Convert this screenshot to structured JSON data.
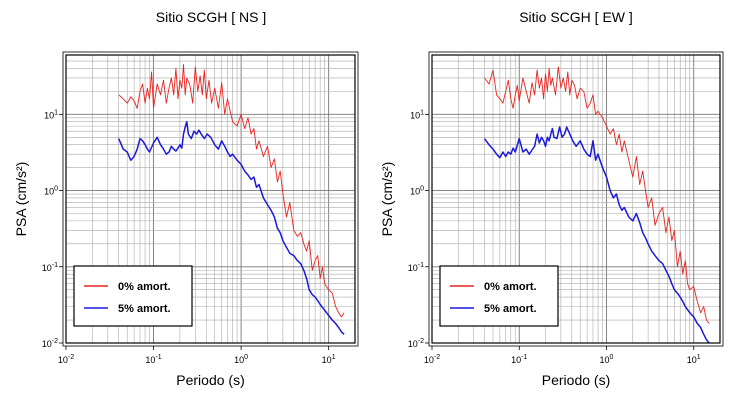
{
  "chart_data": [
    {
      "type": "line",
      "title": "Sitio SCGH [ NS ]",
      "xlabel": "Periodo (s)",
      "ylabel": "PSA (cm/s²)",
      "xscale": "log",
      "yscale": "log",
      "xlim": [
        0.01,
        20
      ],
      "ylim": [
        0.01,
        60
      ],
      "grid": true,
      "legend_position": "bottom-left",
      "x_ticks": [
        {
          "base": "10",
          "exp": "-2",
          "value": 0.01
        },
        {
          "base": "10",
          "exp": "-1",
          "value": 0.1
        },
        {
          "base": "10",
          "exp": "0",
          "value": 1
        },
        {
          "base": "10",
          "exp": "1",
          "value": 10
        }
      ],
      "y_ticks": [
        {
          "base": "10",
          "exp": "-2",
          "value": 0.01
        },
        {
          "base": "10",
          "exp": "-1",
          "value": 0.1
        },
        {
          "base": "10",
          "exp": "0",
          "value": 1
        },
        {
          "base": "10",
          "exp": "1",
          "value": 10
        }
      ],
      "series": [
        {
          "name": "0% amort.",
          "color": "#e8231e",
          "x": [
            0.04,
            0.045,
            0.05,
            0.055,
            0.06,
            0.065,
            0.07,
            0.075,
            0.08,
            0.085,
            0.09,
            0.095,
            0.1,
            0.11,
            0.12,
            0.13,
            0.14,
            0.15,
            0.16,
            0.17,
            0.18,
            0.19,
            0.2,
            0.21,
            0.22,
            0.23,
            0.24,
            0.26,
            0.28,
            0.3,
            0.32,
            0.34,
            0.36,
            0.38,
            0.4,
            0.43,
            0.46,
            0.5,
            0.55,
            0.6,
            0.65,
            0.7,
            0.75,
            0.8,
            0.9,
            1.0,
            1.1,
            1.2,
            1.3,
            1.4,
            1.5,
            1.6,
            1.8,
            2.0,
            2.2,
            2.4,
            2.6,
            2.8,
            3.0,
            3.3,
            3.6,
            4.0,
            4.4,
            4.8,
            5.2,
            5.6,
            6.0,
            6.5,
            7.0,
            7.5,
            8.0,
            8.5,
            9.0,
            10,
            11,
            12,
            13,
            14,
            15
          ],
          "y": [
            18,
            16,
            14,
            17,
            15,
            12,
            20,
            25,
            14,
            22,
            16,
            36,
            12,
            25,
            18,
            28,
            14,
            22,
            30,
            18,
            40,
            16,
            28,
            22,
            45,
            18,
            30,
            24,
            14,
            42,
            20,
            32,
            18,
            38,
            16,
            28,
            14,
            22,
            12,
            26,
            10,
            16,
            11,
            8,
            7,
            10,
            6.5,
            9,
            5.5,
            6.5,
            3.5,
            4.5,
            2.8,
            3.8,
            2.0,
            2.6,
            1.3,
            1.8,
            0.9,
            0.45,
            0.7,
            0.3,
            0.25,
            0.28,
            0.2,
            0.16,
            0.22,
            0.09,
            0.12,
            0.14,
            0.07,
            0.1,
            0.06,
            0.05,
            0.045,
            0.03,
            0.025,
            0.022,
            0.025
          ]
        },
        {
          "name": "5% amort.",
          "color": "#1a1ad8",
          "x": [
            0.04,
            0.045,
            0.05,
            0.055,
            0.06,
            0.065,
            0.07,
            0.075,
            0.08,
            0.085,
            0.09,
            0.1,
            0.11,
            0.12,
            0.13,
            0.14,
            0.15,
            0.16,
            0.17,
            0.18,
            0.19,
            0.2,
            0.21,
            0.22,
            0.23,
            0.24,
            0.25,
            0.27,
            0.29,
            0.31,
            0.33,
            0.35,
            0.38,
            0.41,
            0.45,
            0.5,
            0.55,
            0.6,
            0.65,
            0.7,
            0.75,
            0.8,
            0.9,
            1.0,
            1.1,
            1.2,
            1.3,
            1.4,
            1.5,
            1.6,
            1.8,
            2.0,
            2.2,
            2.4,
            2.6,
            2.8,
            3.0,
            3.3,
            3.6,
            4.0,
            4.4,
            4.8,
            5.2,
            5.6,
            6.0,
            6.5,
            7.0,
            7.5,
            8.0,
            9.0,
            10,
            11,
            12,
            13,
            14,
            15
          ],
          "y": [
            4.8,
            3.5,
            3.2,
            2.5,
            2.8,
            3.5,
            4.8,
            4.5,
            4.0,
            3.5,
            3.2,
            4.2,
            5.0,
            4.0,
            3.5,
            3.0,
            3.2,
            3.8,
            3.5,
            3.3,
            3.6,
            4.0,
            3.6,
            5.5,
            6.8,
            8.0,
            5.5,
            4.8,
            6.0,
            5.5,
            6.2,
            5.5,
            4.8,
            5.5,
            5.0,
            4.0,
            3.5,
            4.5,
            3.8,
            3.2,
            2.8,
            3.0,
            2.5,
            2.2,
            1.8,
            1.6,
            1.4,
            1.5,
            1.1,
            1.2,
            0.8,
            0.65,
            0.55,
            0.45,
            0.32,
            0.28,
            0.22,
            0.18,
            0.15,
            0.14,
            0.12,
            0.11,
            0.09,
            0.07,
            0.05,
            0.043,
            0.04,
            0.036,
            0.032,
            0.027,
            0.023,
            0.02,
            0.018,
            0.016,
            0.014,
            0.013
          ]
        }
      ]
    },
    {
      "type": "line",
      "title": "Sitio SCGH [ EW ]",
      "xlabel": "Periodo (s)",
      "ylabel": "PSA (cm/s²)",
      "xscale": "log",
      "yscale": "log",
      "xlim": [
        0.01,
        20
      ],
      "ylim": [
        0.01,
        60
      ],
      "grid": true,
      "legend_position": "bottom-left",
      "x_ticks": [
        {
          "base": "10",
          "exp": "-2",
          "value": 0.01
        },
        {
          "base": "10",
          "exp": "-1",
          "value": 0.1
        },
        {
          "base": "10",
          "exp": "0",
          "value": 1
        },
        {
          "base": "10",
          "exp": "1",
          "value": 10
        }
      ],
      "y_ticks": [
        {
          "base": "10",
          "exp": "-2",
          "value": 0.01
        },
        {
          "base": "10",
          "exp": "-1",
          "value": 0.1
        },
        {
          "base": "10",
          "exp": "0",
          "value": 1
        },
        {
          "base": "10",
          "exp": "1",
          "value": 10
        }
      ],
      "series": [
        {
          "name": "0% amort.",
          "color": "#e8231e",
          "x": [
            0.04,
            0.045,
            0.05,
            0.055,
            0.06,
            0.065,
            0.07,
            0.075,
            0.08,
            0.085,
            0.09,
            0.095,
            0.1,
            0.11,
            0.12,
            0.13,
            0.14,
            0.15,
            0.16,
            0.17,
            0.18,
            0.19,
            0.2,
            0.21,
            0.22,
            0.23,
            0.24,
            0.26,
            0.28,
            0.3,
            0.32,
            0.34,
            0.36,
            0.38,
            0.4,
            0.43,
            0.46,
            0.5,
            0.55,
            0.6,
            0.65,
            0.7,
            0.75,
            0.8,
            0.9,
            1.0,
            1.1,
            1.2,
            1.3,
            1.4,
            1.5,
            1.6,
            1.8,
            2.0,
            2.2,
            2.4,
            2.6,
            2.8,
            3.0,
            3.3,
            3.6,
            4.0,
            4.4,
            4.8,
            5.2,
            5.6,
            6.0,
            6.5,
            7.0,
            7.5,
            8.0,
            8.5,
            9.0,
            10,
            11,
            12,
            13,
            14,
            15
          ],
          "y": [
            30,
            25,
            38,
            18,
            16,
            14,
            20,
            28,
            16,
            12,
            18,
            24,
            15,
            30,
            20,
            14,
            26,
            18,
            38,
            22,
            30,
            16,
            34,
            20,
            40,
            24,
            30,
            18,
            42,
            22,
            30,
            20,
            36,
            18,
            28,
            24,
            16,
            22,
            20,
            12,
            14,
            18,
            10,
            11,
            9,
            7,
            5.5,
            6.5,
            4,
            5.5,
            3.2,
            4.5,
            2.5,
            1.5,
            2.8,
            1.2,
            1.8,
            1.0,
            0.6,
            0.8,
            0.35,
            0.5,
            0.6,
            0.28,
            0.45,
            0.22,
            0.3,
            0.1,
            0.16,
            0.08,
            0.12,
            0.06,
            0.05,
            0.055,
            0.035,
            0.025,
            0.03,
            0.02,
            0.018
          ]
        },
        {
          "name": "5% amort.",
          "color": "#1a1ad8",
          "x": [
            0.04,
            0.045,
            0.05,
            0.055,
            0.06,
            0.065,
            0.07,
            0.075,
            0.08,
            0.085,
            0.09,
            0.1,
            0.11,
            0.12,
            0.13,
            0.14,
            0.15,
            0.16,
            0.17,
            0.18,
            0.19,
            0.2,
            0.21,
            0.22,
            0.23,
            0.24,
            0.25,
            0.27,
            0.29,
            0.31,
            0.33,
            0.35,
            0.38,
            0.41,
            0.45,
            0.5,
            0.55,
            0.6,
            0.65,
            0.7,
            0.75,
            0.8,
            0.9,
            1.0,
            1.1,
            1.2,
            1.3,
            1.4,
            1.5,
            1.6,
            1.8,
            2.0,
            2.2,
            2.4,
            2.6,
            2.8,
            3.0,
            3.3,
            3.6,
            4.0,
            4.4,
            4.8,
            5.2,
            5.6,
            6.0,
            6.5,
            7.0,
            7.5,
            8.0,
            9.0,
            10,
            11,
            12,
            13,
            14,
            15
          ],
          "y": [
            4.8,
            4.0,
            3.5,
            3.0,
            2.7,
            3.2,
            2.8,
            3.2,
            3.0,
            3.6,
            3.2,
            4.8,
            3.2,
            3.5,
            3.0,
            3.4,
            3.8,
            5.5,
            4.2,
            5.0,
            4.5,
            3.8,
            5.0,
            4.5,
            5.5,
            6.5,
            5.0,
            4.8,
            6.8,
            5.0,
            5.5,
            6.8,
            5.5,
            4.5,
            3.8,
            4.5,
            3.5,
            3.0,
            2.8,
            4.5,
            2.5,
            3.0,
            2.0,
            1.5,
            1.0,
            0.8,
            0.9,
            0.65,
            0.55,
            0.6,
            0.45,
            0.4,
            0.5,
            0.38,
            0.28,
            0.24,
            0.2,
            0.16,
            0.14,
            0.12,
            0.11,
            0.09,
            0.075,
            0.06,
            0.05,
            0.045,
            0.04,
            0.035,
            0.03,
            0.025,
            0.022,
            0.018,
            0.016,
            0.013,
            0.011,
            0.01
          ]
        }
      ]
    }
  ]
}
